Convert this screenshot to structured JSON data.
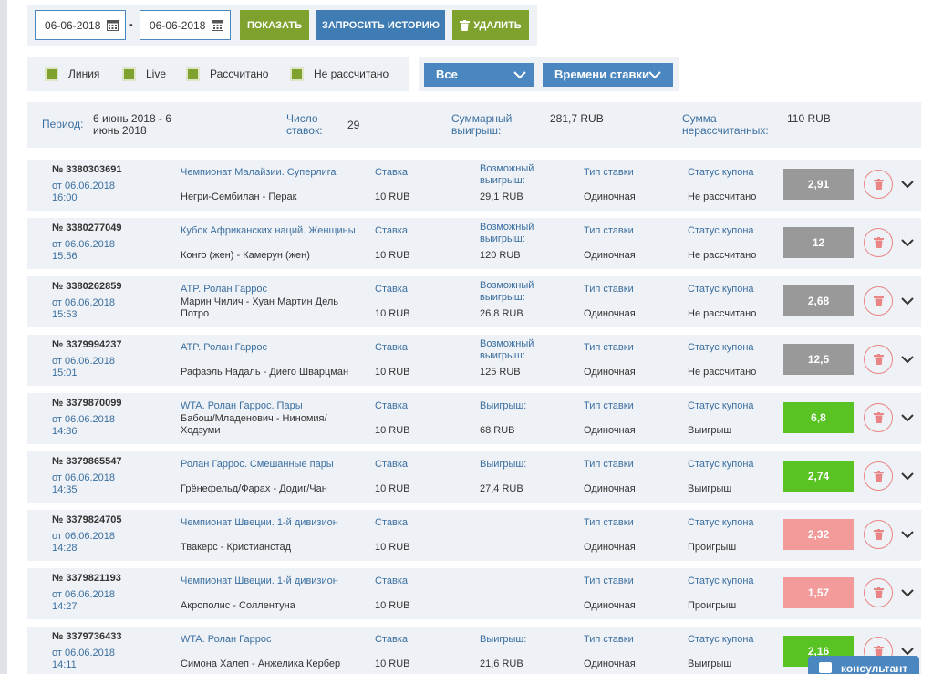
{
  "filters": {
    "date_from": "06-06-2018",
    "date_separator": "-",
    "date_to": "06-06-2018",
    "buttons": [
      "ПОКАЗАТЬ",
      "ЗАПРОСИТЬ ИСТОРИЮ",
      "УДАЛИТЬ"
    ],
    "checkboxes": [
      "Линия",
      "Live",
      "Рассчитано",
      "Не рассчитано"
    ],
    "dropdowns": [
      "Все",
      "Времени ставки"
    ]
  },
  "summary": [
    {
      "label": "Период:",
      "value": "6 июнь 2018 - 6 июнь 2018"
    },
    {
      "label": "Число ставок:",
      "value": "29"
    },
    {
      "label": "Суммарный выигрыш:",
      "value": "281,7 RUB"
    },
    {
      "label": "Сумма нерассчитанных:",
      "value": "110 RUB"
    }
  ],
  "bets": [
    {
      "id": "№ 3380303691",
      "date": "от 06.06.2018 | 16:00",
      "tournament": "Чемпионат Малайзии. Суперлига",
      "match": "Негри-Сембилан - Перак",
      "stake_label": "Ставка",
      "stake": "10 RUB",
      "win_label": "Возможный выигрыш:",
      "win": "29,1 RUB",
      "type_label": "Тип ставки",
      "type": "Одиночная",
      "status_label": "Статус купона",
      "status": "Не рассчитано",
      "coef": "2,91",
      "coef_color": "#999999"
    },
    {
      "id": "№ 3380277049",
      "date": "от 06.06.2018 | 15:56",
      "tournament": "Кубок Африканских наций. Женщины",
      "match": "Конго (жен) - Камерун (жен)",
      "stake_label": "Ставка",
      "stake": "10 RUB",
      "win_label": "Возможный выигрыш:",
      "win": "120 RUB",
      "type_label": "Тип ставки",
      "type": "Одиночная",
      "status_label": "Статус купона",
      "status": "Не рассчитано",
      "coef": "12",
      "coef_color": "#999999"
    },
    {
      "id": "№ 3380262859",
      "date": "от 06.06.2018 | 15:53",
      "tournament": "ATP. Ролан Гаррос",
      "match": "Марин Чилич - Хуан Мартин Дель Потро",
      "stake_label": "Ставка",
      "stake": "10 RUB",
      "win_label": "Возможный выигрыш:",
      "win": "26,8 RUB",
      "type_label": "Тип ставки",
      "type": "Одиночная",
      "status_label": "Статус купона",
      "status": "Не рассчитано",
      "coef": "2,68",
      "coef_color": "#999999"
    },
    {
      "id": "№ 3379994237",
      "date": "от 06.06.2018 | 15:01",
      "tournament": "ATP. Ролан Гаррос",
      "match": "Рафаэль Надаль - Диего Шварцман",
      "stake_label": "Ставка",
      "stake": "10 RUB",
      "win_label": "Возможный выигрыш:",
      "win": "125 RUB",
      "type_label": "Тип ставки",
      "type": "Одиночная",
      "status_label": "Статус купона",
      "status": "Не рассчитано",
      "coef": "12,5",
      "coef_color": "#999999"
    },
    {
      "id": "№ 3379870099",
      "date": "от 06.06.2018 | 14:36",
      "tournament": "WTA. Ролан Гаррос. Пары",
      "match": "Бабош/Младенович - Ниномия/Ходзуми",
      "stake_label": "Ставка",
      "stake": "10 RUB",
      "win_label": "Выигрыш:",
      "win": "68 RUB",
      "type_label": "Тип ставки",
      "type": "Одиночная",
      "status_label": "Статус купона",
      "status": "Выигрыш",
      "coef": "6,8",
      "coef_color": "#58c322"
    },
    {
      "id": "№ 3379865547",
      "date": "от 06.06.2018 | 14:35",
      "tournament": "Ролан Гаррос. Смешанные пары",
      "match": "Грёнефельд/Фарах - Додиг/Чан",
      "stake_label": "Ставка",
      "stake": "10 RUB",
      "win_label": "Выигрыш:",
      "win": "27,4 RUB",
      "type_label": "Тип ставки",
      "type": "Одиночная",
      "status_label": "Статус купона",
      "status": "Выигрыш",
      "coef": "2,74",
      "coef_color": "#58c322"
    },
    {
      "id": "№ 3379824705",
      "date": "от 06.06.2018 | 14:28",
      "tournament": "Чемпионат Швеции. 1-й дивизион",
      "match": "Твакерс - Кристианстад",
      "stake_label": "Ставка",
      "stake": "10 RUB",
      "type_label": "Тип ставки",
      "type": "Одиночная",
      "status_label": "Статус купона",
      "status": "Проигрыш",
      "coef": "2,32",
      "coef_color": "#f39a9a"
    },
    {
      "id": "№ 3379821193",
      "date": "от 06.06.2018 | 14:27",
      "tournament": "Чемпионат Швеции. 1-й дивизион",
      "match": "Акрополис - Соллентуна",
      "stake_label": "Ставка",
      "stake": "10 RUB",
      "type_label": "Тип ставки",
      "type": "Одиночная",
      "status_label": "Статус купона",
      "status": "Проигрыш",
      "coef": "1,57",
      "coef_color": "#f39a9a"
    },
    {
      "id": "№ 3379736433",
      "date": "от 06.06.2018 | 14:11",
      "tournament": "WTA. Ролан Гаррос",
      "match": "Симона Халеп - Анжелика Кербер",
      "stake_label": "Ставка",
      "stake": "10 RUB",
      "win_label": "Выигрыш:",
      "win": "21,6 RUB",
      "type_label": "Тип ставки",
      "type": "Одиночная",
      "status_label": "Статус купона",
      "status": "Выигрыш",
      "coef": "2,16",
      "coef_color": "#58c322"
    }
  ],
  "consultant": "консультант"
}
